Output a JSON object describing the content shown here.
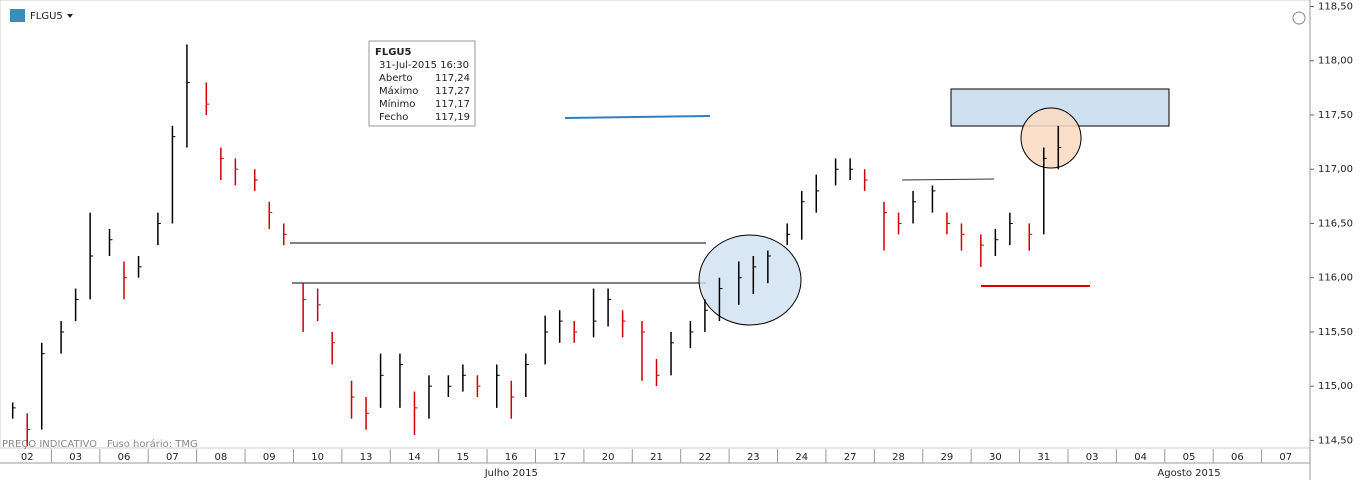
{
  "chart_data": {
    "type": "ohlc",
    "symbol": "FLGU5",
    "footer_left": "PREÇO INDICATIVO",
    "footer_tz": "Fuso horário: TMG",
    "info_box": {
      "title": "FLGU5",
      "datetime": "31-Jul-2015 16:30",
      "rows": [
        [
          "Aberto",
          "117,24"
        ],
        [
          "Máximo",
          "117,27"
        ],
        [
          "Mínimo",
          "117,17"
        ],
        [
          "Fecho",
          "117,19"
        ]
      ]
    },
    "categories": [
      "02",
      "03",
      "06",
      "07",
      "08",
      "09",
      "10",
      "13",
      "14",
      "15",
      "16",
      "17",
      "20",
      "21",
      "22",
      "23",
      "24",
      "27",
      "28",
      "29",
      "30",
      "31",
      "03",
      "04",
      "05",
      "06",
      "07"
    ],
    "months": [
      {
        "label": "Julho 2015",
        "day": 10.5
      },
      {
        "label": "Agosto 2015",
        "day": 24.5
      }
    ],
    "xlim": [
      0,
      27
    ],
    "x": [
      0.2,
      0.5,
      0.8,
      1.2,
      1.5,
      1.8,
      2.2,
      2.5,
      2.8,
      3.2,
      3.5,
      3.8,
      4.2,
      4.5,
      4.8,
      5.2,
      5.5,
      5.8,
      6.2,
      6.5,
      6.8,
      7.2,
      7.5,
      7.8,
      8.2,
      8.5,
      8.8,
      9.2,
      9.5,
      9.8,
      10.2,
      10.5,
      10.8,
      11.2,
      11.5,
      11.8,
      12.2,
      12.5,
      12.8,
      13.2,
      13.5,
      13.8,
      14.2,
      14.5,
      14.8,
      15.2,
      15.5,
      15.8,
      16.2,
      16.5,
      16.8,
      17.2,
      17.5,
      17.8,
      18.2,
      18.5,
      18.8,
      19.2,
      19.5,
      19.8,
      20.2,
      20.5,
      20.8,
      21.2,
      21.5,
      21.8
    ],
    "high": [
      114.85,
      114.75,
      115.4,
      115.6,
      115.9,
      116.6,
      116.45,
      116.15,
      116.2,
      116.6,
      117.4,
      118.15,
      117.8,
      117.2,
      117.1,
      117.0,
      116.7,
      116.5,
      115.95,
      115.9,
      115.5,
      115.05,
      114.9,
      115.3,
      115.3,
      114.95,
      115.1,
      115.1,
      115.2,
      115.1,
      115.2,
      115.05,
      115.3,
      115.65,
      115.7,
      115.6,
      115.9,
      115.9,
      115.7,
      115.6,
      115.25,
      115.5,
      115.6,
      115.8,
      116.0,
      116.15,
      116.2,
      116.25,
      116.5,
      116.8,
      116.95,
      117.1,
      117.1,
      117.0,
      116.7,
      116.6,
      116.8,
      116.85,
      116.6,
      116.5,
      116.4,
      116.45,
      116.6,
      116.5,
      117.2,
      117.4
    ],
    "low": [
      114.7,
      114.45,
      114.6,
      115.3,
      115.6,
      115.8,
      116.2,
      115.8,
      116.0,
      116.3,
      116.5,
      117.2,
      117.5,
      116.9,
      116.85,
      116.8,
      116.45,
      116.3,
      115.5,
      115.6,
      115.2,
      114.7,
      114.6,
      114.8,
      114.8,
      114.55,
      114.7,
      114.9,
      114.95,
      114.9,
      114.8,
      114.7,
      114.9,
      115.2,
      115.4,
      115.4,
      115.45,
      115.55,
      115.45,
      115.05,
      115.0,
      115.1,
      115.35,
      115.5,
      115.6,
      115.75,
      115.85,
      115.95,
      116.3,
      116.35,
      116.6,
      116.85,
      116.9,
      116.8,
      116.25,
      116.4,
      116.5,
      116.6,
      116.4,
      116.25,
      116.1,
      116.2,
      116.3,
      116.25,
      116.4,
      117.0
    ],
    "close": [
      114.8,
      114.6,
      115.3,
      115.5,
      115.8,
      116.2,
      116.35,
      116.0,
      116.1,
      116.5,
      117.3,
      117.8,
      117.6,
      117.1,
      117.0,
      116.9,
      116.6,
      116.4,
      115.8,
      115.75,
      115.4,
      114.9,
      114.75,
      115.1,
      115.2,
      114.8,
      115.0,
      115.0,
      115.1,
      115.0,
      115.1,
      114.9,
      115.2,
      115.5,
      115.6,
      115.5,
      115.6,
      115.8,
      115.6,
      115.5,
      115.1,
      115.4,
      115.5,
      115.7,
      115.9,
      116.0,
      116.1,
      116.2,
      116.4,
      116.7,
      116.8,
      117.0,
      117.0,
      116.9,
      116.6,
      116.5,
      116.7,
      116.8,
      116.5,
      116.4,
      116.3,
      116.35,
      116.5,
      116.4,
      117.1,
      117.2
    ],
    "up_color": "#000000",
    "down_color": "#cc0000",
    "ylim": [
      114.43,
      118.56
    ],
    "yticks": [
      {
        "value": 114.5,
        "label": "114,50"
      },
      {
        "value": 115,
        "label": "115,00"
      },
      {
        "value": 115.5,
        "label": "115,50"
      },
      {
        "value": 116,
        "label": "116,00"
      },
      {
        "value": 116.5,
        "label": "116,50"
      },
      {
        "value": 117,
        "label": "117,00"
      },
      {
        "value": 117.5,
        "label": "117,50"
      },
      {
        "value": 118,
        "label": "118,00"
      },
      {
        "value": 118.5,
        "label": "118,50"
      }
    ]
  }
}
